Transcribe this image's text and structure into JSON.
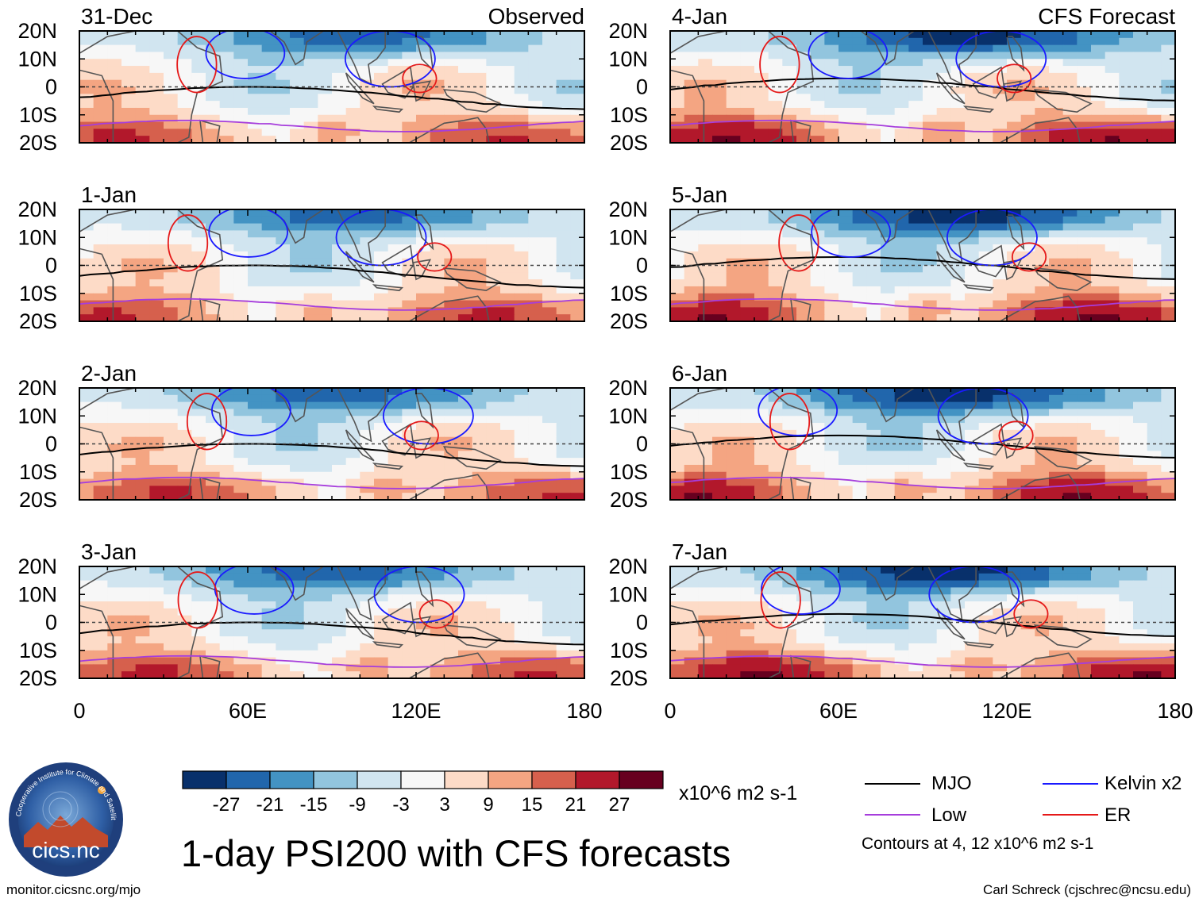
{
  "title": "1-day PSI200 with CFS forecasts",
  "credit_left": "monitor.cicsnc.org/mjo",
  "credit_right": "Carl Schreck (cjschrec@ncsu.edu)",
  "logo": {
    "text": "cics.nc",
    "ring_text": "Cooperative Institute for Climate and Satellites"
  },
  "colors": {
    "mjo": "#000000",
    "kelvin": "#1a1aff",
    "low": "#a63ddc",
    "er": "#e51919",
    "land": "#555555",
    "colorbar": [
      "#08306b",
      "#2166ac",
      "#4393c3",
      "#92c5de",
      "#d1e5f0",
      "#f7f7f7",
      "#fddbc7",
      "#f4a582",
      "#d6604d",
      "#b2182b",
      "#67001f"
    ]
  },
  "chart_data": {
    "type": "heatmap",
    "variable": "PSI200 anomaly",
    "units": "x10^6 m2 s-1",
    "x_ticks": [
      "0",
      "60E",
      "120E",
      "180"
    ],
    "x_values": [
      0,
      60,
      120,
      180
    ],
    "y_ticks": [
      "20N",
      "10N",
      "0",
      "10S",
      "20S"
    ],
    "y_values": [
      20,
      10,
      0,
      -10,
      -20
    ],
    "xlim": [
      0,
      180
    ],
    "ylim": [
      -20,
      20
    ],
    "colorbar": {
      "levels": [
        -27,
        -21,
        -15,
        -9,
        -3,
        3,
        9,
        15,
        21,
        27
      ],
      "labels": [
        "-27",
        "-21",
        "-15",
        "-9",
        "-3",
        "3",
        "9",
        "15",
        "21",
        "27"
      ]
    },
    "legend": [
      {
        "name": "MJO",
        "color": "#000000"
      },
      {
        "name": "Kelvin x2",
        "color": "#1a1aff"
      },
      {
        "name": "Low",
        "color": "#a63ddc"
      },
      {
        "name": "ER",
        "color": "#e51919"
      }
    ],
    "contour_note": "Contours at 4, 12 x10^6 m2 s-1",
    "panels": [
      {
        "date": "31-Dec",
        "source": "Observed",
        "column": 0,
        "row": 0,
        "seed": 1
      },
      {
        "date": "1-Jan",
        "source": "",
        "column": 0,
        "row": 1,
        "seed": 2
      },
      {
        "date": "2-Jan",
        "source": "",
        "column": 0,
        "row": 2,
        "seed": 3
      },
      {
        "date": "3-Jan",
        "source": "",
        "column": 0,
        "row": 3,
        "seed": 4
      },
      {
        "date": "4-Jan",
        "source": "CFS Forecast",
        "column": 1,
        "row": 0,
        "seed": 5
      },
      {
        "date": "5-Jan",
        "source": "",
        "column": 1,
        "row": 1,
        "seed": 6
      },
      {
        "date": "6-Jan",
        "source": "",
        "column": 1,
        "row": 2,
        "seed": 7
      },
      {
        "date": "7-Jan",
        "source": "",
        "column": 1,
        "row": 3,
        "seed": 8
      }
    ]
  }
}
